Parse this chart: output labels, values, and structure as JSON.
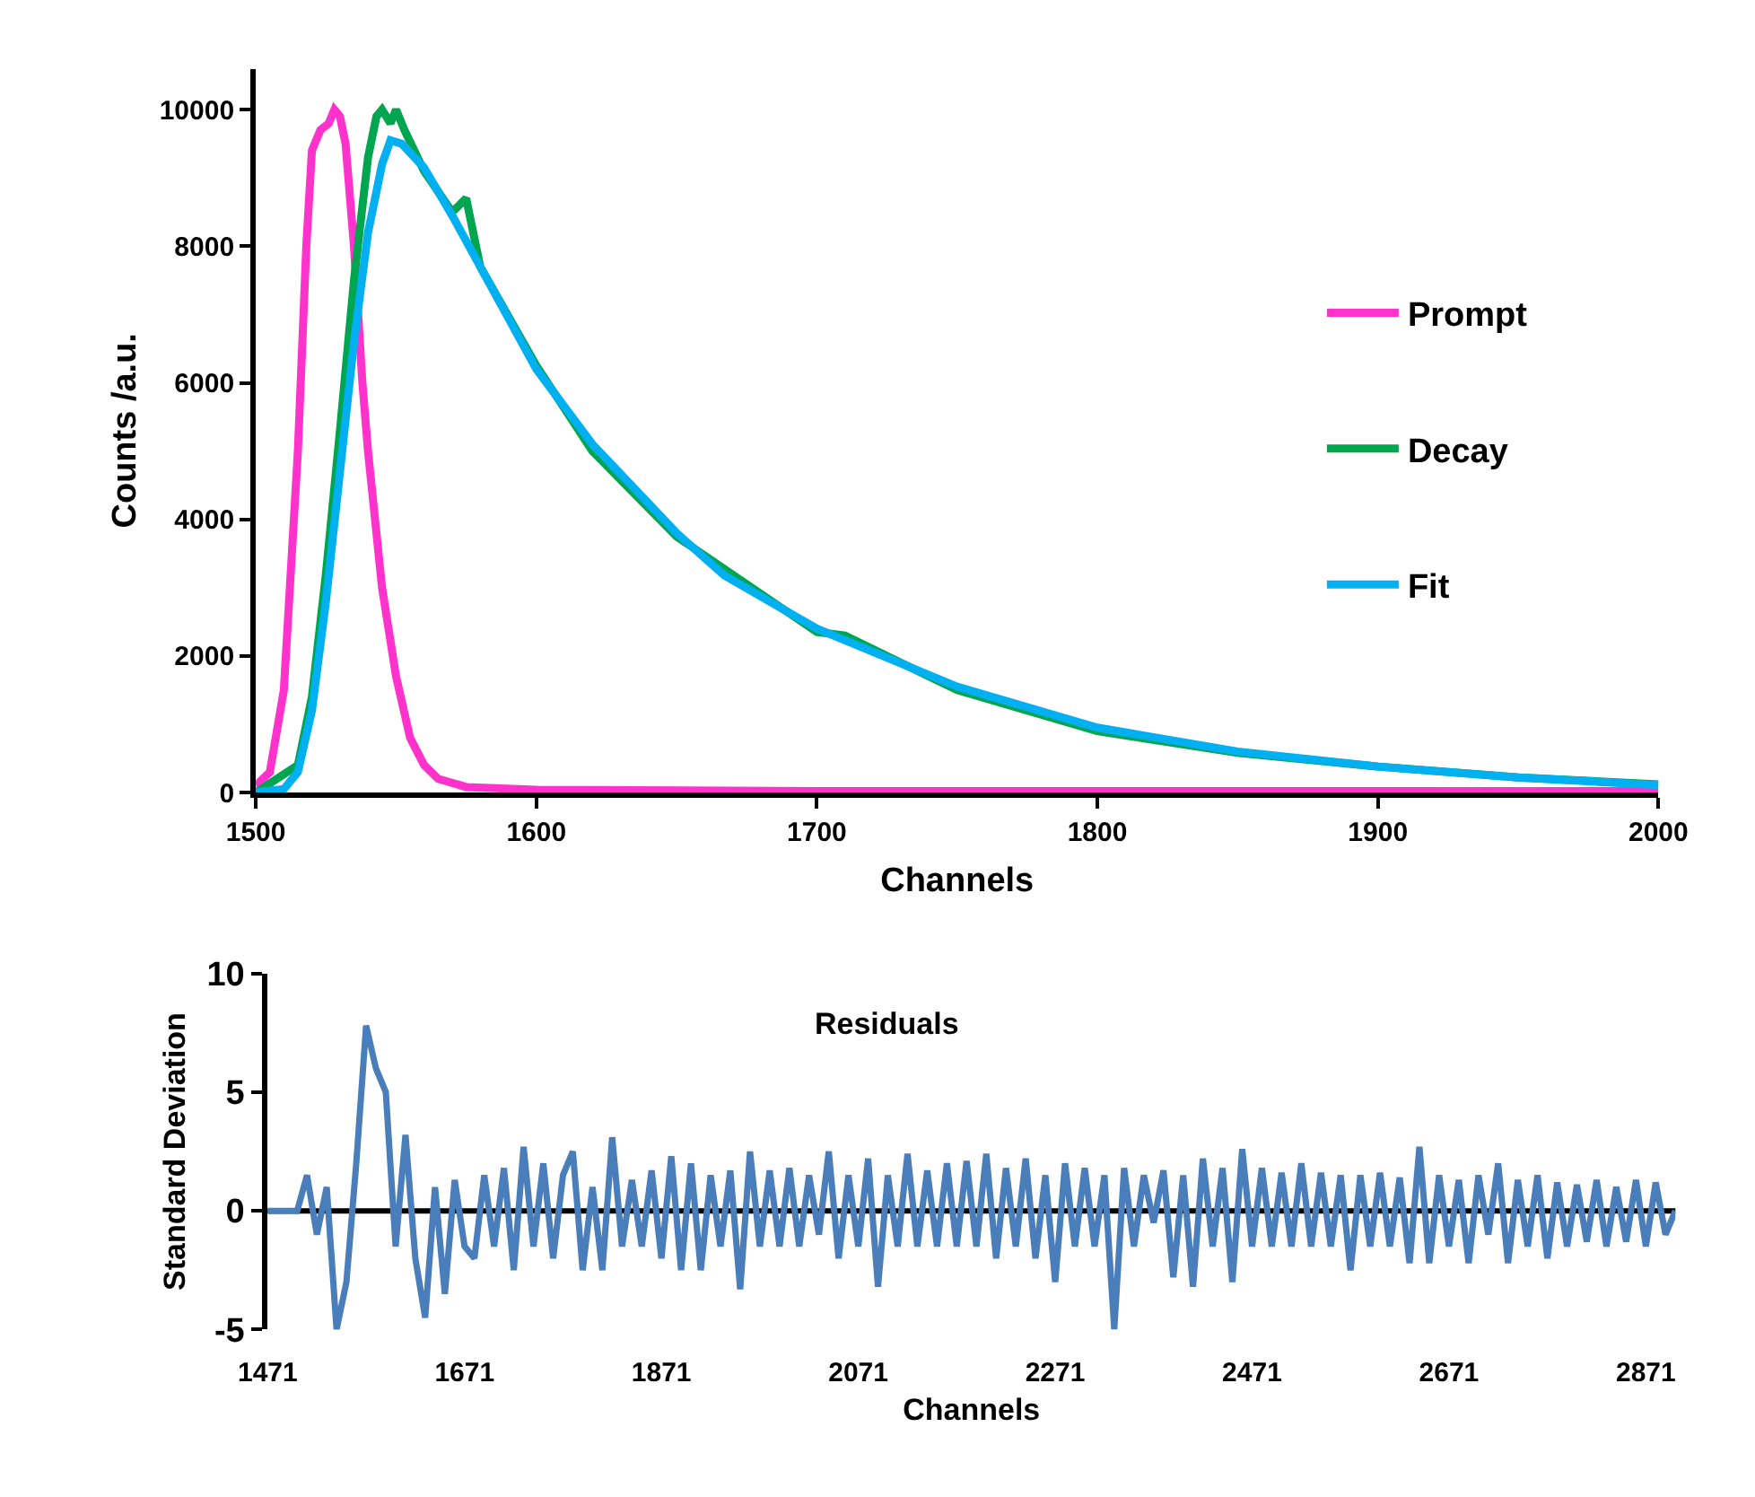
{
  "chart_data": [
    {
      "type": "line",
      "xlabel": "Channels",
      "ylabel": "Counts /a.u.",
      "xlim": [
        1500,
        2000
      ],
      "xticks": [
        1500,
        1600,
        1700,
        1800,
        1900,
        2000
      ],
      "ylim": [
        0,
        10600
      ],
      "yticks": [
        0,
        2000,
        4000,
        6000,
        8000,
        10000
      ],
      "legend": "right",
      "marker": "none",
      "line_style": "solid",
      "series": [
        {
          "name": "Prompt",
          "color": "#ff33cc",
          "x": [
            1500,
            1505,
            1510,
            1515,
            1518,
            1520,
            1523,
            1526,
            1528,
            1530,
            1532,
            1535,
            1538,
            1540,
            1545,
            1550,
            1555,
            1560,
            1565,
            1575,
            1600,
            1700,
            1800,
            1900,
            2000
          ],
          "values": [
            100,
            300,
            1500,
            5000,
            8000,
            9400,
            9700,
            9800,
            10000,
            9900,
            9500,
            8000,
            6000,
            5000,
            3000,
            1700,
            800,
            400,
            200,
            80,
            40,
            20,
            20,
            20,
            20
          ]
        },
        {
          "name": "Decay",
          "color": "#00a550",
          "x": [
            1500,
            1515,
            1520,
            1525,
            1530,
            1535,
            1540,
            1543,
            1545,
            1548,
            1550,
            1553,
            1560,
            1570,
            1575,
            1580,
            1600,
            1620,
            1650,
            1700,
            1710,
            1750,
            1800,
            1850,
            1900,
            1950,
            2000
          ],
          "values": [
            0,
            400,
            1400,
            3200,
            5300,
            7500,
            9300,
            9900,
            10000,
            9800,
            10000,
            9700,
            9100,
            8500,
            8700,
            7700,
            6250,
            5000,
            3750,
            2350,
            2300,
            1500,
            900,
            580,
            380,
            220,
            120
          ]
        },
        {
          "name": "Fit",
          "color": "#00b0f0",
          "x": [
            1500,
            1510,
            1515,
            1520,
            1525,
            1530,
            1535,
            1540,
            1545,
            1548,
            1552,
            1560,
            1570,
            1580,
            1600,
            1620,
            1650,
            1667,
            1700,
            1750,
            1800,
            1850,
            1900,
            1950,
            2000
          ],
          "values": [
            0,
            50,
            300,
            1200,
            2800,
            4700,
            6600,
            8200,
            9200,
            9550,
            9500,
            9150,
            8450,
            7700,
            6200,
            5100,
            3800,
            3180,
            2400,
            1550,
            950,
            600,
            380,
            220,
            110
          ]
        }
      ]
    },
    {
      "type": "line",
      "title": "Residuals",
      "xlabel": "Channels",
      "ylabel": "Standard Deviation",
      "xlim": [
        1471,
        2901
      ],
      "xticks": [
        1471,
        1671,
        1871,
        2071,
        2271,
        2471,
        2671,
        2871
      ],
      "ylim": [
        -5,
        10
      ],
      "yticks": [
        -5,
        0,
        5,
        10
      ],
      "ref_lines": [
        {
          "axis": "y",
          "value": 0,
          "color": "#000000"
        }
      ],
      "legend": false,
      "marker": "none",
      "line_style": "solid",
      "series": [
        {
          "color": "#4a7ebb",
          "x": [
            1471,
            1481,
            1491,
            1501,
            1511,
            1521,
            1531,
            1541,
            1551,
            1561,
            1571,
            1581,
            1591,
            1601,
            1611,
            1621,
            1631,
            1641,
            1651,
            1661,
            1671,
            1681,
            1691,
            1701,
            1711,
            1721,
            1731,
            1741,
            1751,
            1761,
            1771,
            1781,
            1791,
            1801,
            1811,
            1821,
            1831,
            1841,
            1851,
            1861,
            1871,
            1881,
            1891,
            1901,
            1911,
            1921,
            1931,
            1941,
            1951,
            1961,
            1971,
            1981,
            1991,
            2001,
            2011,
            2021,
            2031,
            2041,
            2051,
            2061,
            2071,
            2081,
            2091,
            2101,
            2111,
            2121,
            2131,
            2141,
            2151,
            2161,
            2171,
            2181,
            2191,
            2201,
            2211,
            2221,
            2231,
            2241,
            2251,
            2261,
            2271,
            2281,
            2291,
            2301,
            2311,
            2321,
            2331,
            2341,
            2351,
            2361,
            2371,
            2381,
            2391,
            2401,
            2411,
            2421,
            2431,
            2441,
            2451,
            2461,
            2471,
            2481,
            2491,
            2501,
            2511,
            2521,
            2531,
            2541,
            2551,
            2561,
            2571,
            2581,
            2591,
            2601,
            2611,
            2621,
            2631,
            2641,
            2651,
            2661,
            2671,
            2681,
            2691,
            2701,
            2711,
            2721,
            2731,
            2741,
            2751,
            2761,
            2771,
            2781,
            2791,
            2801,
            2811,
            2821,
            2831,
            2841,
            2851,
            2861,
            2871,
            2881,
            2891,
            2901
          ],
          "values": [
            0,
            0,
            0,
            0,
            1.5,
            -1,
            1,
            -5,
            -3,
            2,
            7.8,
            6,
            5,
            -1.5,
            3.2,
            -2,
            -4.5,
            1,
            -3.5,
            1.3,
            -1.5,
            -2,
            1.5,
            -1.5,
            1.8,
            -2.5,
            2.7,
            -1.5,
            2,
            -2,
            1.5,
            2.5,
            -2.5,
            1,
            -2.5,
            3.1,
            -1.5,
            1.3,
            -1.5,
            1.7,
            -2,
            2.3,
            -2.5,
            2,
            -2.5,
            1.5,
            -1.5,
            1.7,
            -3.3,
            2.5,
            -1.5,
            1.7,
            -1.5,
            1.8,
            -1.5,
            1.5,
            -1,
            2.5,
            -2,
            1.5,
            -1.5,
            2.2,
            -3.2,
            1.5,
            -1.5,
            2.4,
            -1.5,
            1.7,
            -1.5,
            2,
            -1.5,
            2.1,
            -1.5,
            2.4,
            -2,
            1.8,
            -1.5,
            2.2,
            -2,
            1.5,
            -3,
            2,
            -1.5,
            1.8,
            -1.5,
            1.5,
            -5,
            1.8,
            -1.5,
            1.5,
            -0.5,
            1.7,
            -2.8,
            1.5,
            -3.2,
            2.2,
            -1.5,
            1.8,
            -3,
            2.6,
            -1.5,
            1.8,
            -1.5,
            1.6,
            -1.5,
            2,
            -1.5,
            1.6,
            -1.5,
            1.5,
            -2.5,
            1.5,
            -1.5,
            1.6,
            -1.5,
            1.4,
            -2.2,
            2.7,
            -2.2,
            1.5,
            -1.5,
            1.3,
            -2.2,
            1.5,
            -1,
            2,
            -2.2,
            1.3,
            -1.5,
            1.5,
            -2,
            1.2,
            -1.5,
            1.1,
            -1.3,
            1.3,
            -1.5,
            1,
            -1.3,
            1.3,
            -1.5,
            1.2,
            -1,
            0
          ]
        }
      ]
    }
  ]
}
